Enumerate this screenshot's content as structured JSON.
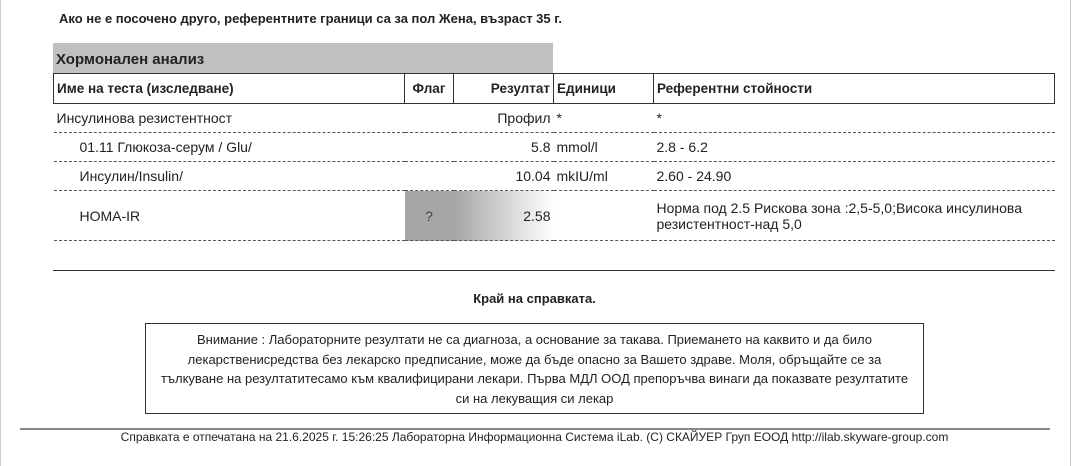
{
  "note": "Ако не е посочено друго, референтните граници са за пол Жена, възраст 35 г.",
  "section": "Хормонален анализ",
  "headers": [
    "Име на теста (изследване)",
    "Флаг",
    "Резултат",
    "Единици",
    "Референтни стойности"
  ],
  "rows": [
    {
      "name": "Инсулинова резистентност",
      "flag": "",
      "result": "Профил",
      "units": "*",
      "ref": "*"
    },
    {
      "name": "01.11 Глюкоза-серум / Glu/",
      "flag": "",
      "result": "5.8",
      "units": "mmol/l",
      "ref": "2.8 - 6.2"
    },
    {
      "name": "Инсулин/Insulin/",
      "flag": "",
      "result": "10.04",
      "units": "mkIU/ml",
      "ref": "2.60 - 24.90"
    },
    {
      "name": "HOMA-IR",
      "flag": "?",
      "result": "2.58",
      "units": "",
      "ref": "Норма под 2.5 Рискова зона :2,5-5,0;Висока инсулинова резистентност-над 5,0"
    }
  ],
  "end": "Край на справката.",
  "warning": "Внимание : Лабораторните резултати не са диагноза, а основание за такава. Приемането на каквито и да било лекарственисредства без лекарско предписание, може да бъде опасно за Вашето здраве. Моля, обръщайте се за тълкуване на резултатитесамо към квалифицирани лекари. Първа МДЛ ООД препоръчва винаги да показвате резултатите си на лекуващия си лекар",
  "footer": "Справката е отпечатана на 21.6.2025 г. 15:26:25 Лабораторна Информационна Система iLab. (C) СКАЙУЕР Груп ЕООД http://ilab.skyware-group.com"
}
